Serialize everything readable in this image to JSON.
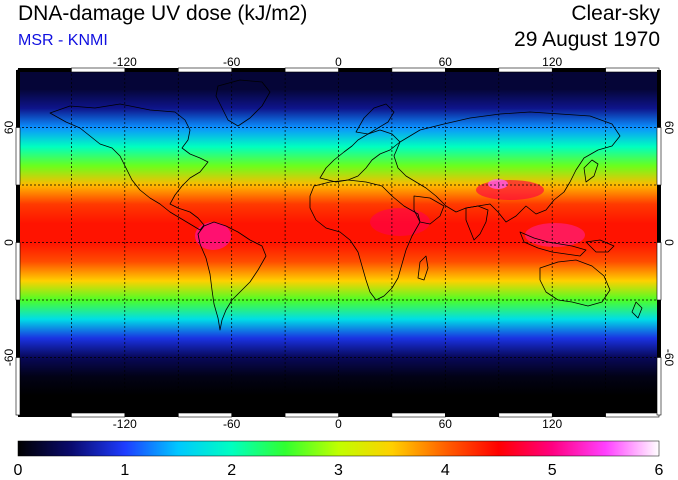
{
  "header": {
    "title": "DNA-damage UV dose (kJ/m2)",
    "subtitle": "MSR - KNMI",
    "condition": "Clear-sky",
    "date": "29 August 1970"
  },
  "map": {
    "projection": "equirectangular",
    "lon_range": [
      -180,
      180
    ],
    "lat_range": [
      -90,
      90
    ],
    "grid_lon_step": 30,
    "grid_lat_step": 30,
    "lon_tick_labels": [
      "-120",
      "-60",
      "0",
      "60",
      "120"
    ],
    "lat_tick_labels": [
      "60",
      "0",
      "-60"
    ]
  },
  "colorbar": {
    "min": 0,
    "max": 6,
    "tick_labels": [
      "0",
      "1",
      "2",
      "3",
      "4",
      "5",
      "6"
    ],
    "colors": [
      "#000000",
      "#0a0a6e",
      "#1e3cff",
      "#00c8ff",
      "#00ffc0",
      "#30ff30",
      "#c0ff00",
      "#ffd000",
      "#ff6000",
      "#ff0000",
      "#ff0080",
      "#ff40ff",
      "#ffffff"
    ]
  },
  "dose_by_latitude": {
    "latitudes": [
      80,
      70,
      60,
      50,
      40,
      30,
      20,
      10,
      0,
      -10,
      -20,
      -30,
      -40,
      -50,
      -60,
      -70,
      -80
    ],
    "values": [
      0.25,
      0.6,
      1.3,
      2.0,
      2.7,
      3.6,
      4.2,
      4.4,
      4.4,
      4.1,
      3.5,
      2.6,
      1.7,
      0.9,
      0.4,
      0.1,
      0.0
    ]
  }
}
